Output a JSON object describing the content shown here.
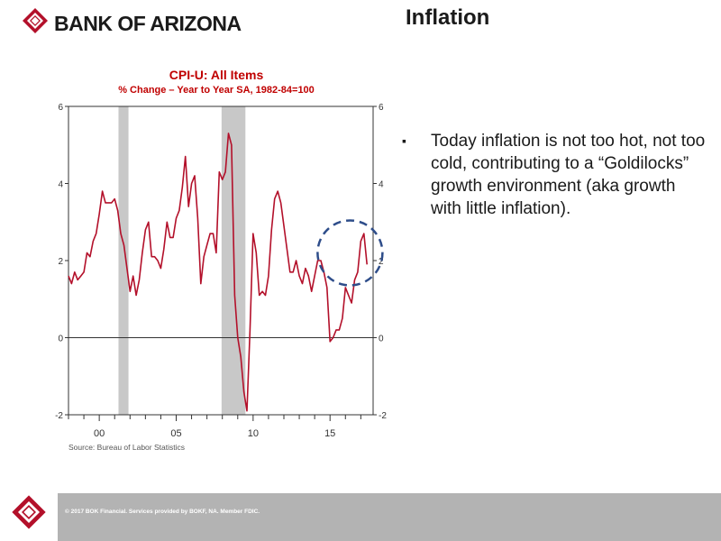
{
  "header": {
    "bank_name": "BANK OF ARIZONA",
    "slide_title": "Inflation"
  },
  "colors": {
    "brand_red": "#b3102a",
    "title_red": "#c00000",
    "recession_gray": "#c8c8c8",
    "highlight_blue": "#2e4d8a",
    "footer_gray": "#b3b3b3"
  },
  "bullets": [
    "Today inflation is not too hot, not too cold, contributing to a “Goldilocks” growth environment (aka growth with little inflation)."
  ],
  "source": "Source:  Bureau of Labor Statistics",
  "footer": {
    "copyright": "© 2017 BOK Financial. Services provided by BOKF, NA. Member FDIC."
  },
  "chart_data": {
    "type": "line",
    "title": "CPI-U:  All Items",
    "subtitle": "% Change – Year to Year    SA, 1982-84=100",
    "xlabel": "",
    "ylabel": "",
    "xlim": [
      1998.0,
      2017.8
    ],
    "ylim": [
      -2,
      6
    ],
    "x_ticks": [
      {
        "value": 2000,
        "label": "00"
      },
      {
        "value": 2005,
        "label": "05"
      },
      {
        "value": 2010,
        "label": "10"
      },
      {
        "value": 2015,
        "label": "15"
      }
    ],
    "y_ticks": [
      -2,
      0,
      2,
      4,
      6
    ],
    "grid": false,
    "zero_line": true,
    "recessions": [
      [
        2001.25,
        2001.9
      ],
      [
        2007.95,
        2009.5
      ]
    ],
    "highlight": {
      "shape": "dashed-circle",
      "center": [
        2016.3,
        2.2
      ]
    },
    "series": [
      {
        "x": [
          1998.0,
          1998.2,
          1998.4,
          1998.6,
          1998.8,
          1999.0,
          1999.2,
          1999.4,
          1999.6,
          1999.8,
          2000.0,
          2000.2,
          2000.4,
          2000.6,
          2000.8,
          2001.0,
          2001.2,
          2001.4,
          2001.6,
          2001.8,
          2002.0,
          2002.2,
          2002.4,
          2002.6,
          2002.8,
          2003.0,
          2003.2,
          2003.4,
          2003.6,
          2003.8,
          2004.0,
          2004.2,
          2004.4,
          2004.6,
          2004.8,
          2005.0,
          2005.2,
          2005.4,
          2005.6,
          2005.8,
          2006.0,
          2006.2,
          2006.4,
          2006.6,
          2006.8,
          2007.0,
          2007.2,
          2007.4,
          2007.6,
          2007.8,
          2008.0,
          2008.2,
          2008.4,
          2008.6,
          2008.8,
          2009.0,
          2009.2,
          2009.4,
          2009.6,
          2009.8,
          2010.0,
          2010.2,
          2010.4,
          2010.6,
          2010.8,
          2011.0,
          2011.2,
          2011.4,
          2011.6,
          2011.8,
          2012.0,
          2012.2,
          2012.4,
          2012.6,
          2012.8,
          2013.0,
          2013.2,
          2013.4,
          2013.6,
          2013.8,
          2014.0,
          2014.2,
          2014.4,
          2014.6,
          2014.8,
          2015.0,
          2015.2,
          2015.4,
          2015.6,
          2015.8,
          2016.0,
          2016.2,
          2016.4,
          2016.6,
          2016.8,
          2017.0,
          2017.2,
          2017.4
        ],
        "values": [
          1.6,
          1.4,
          1.7,
          1.5,
          1.6,
          1.7,
          2.2,
          2.1,
          2.5,
          2.7,
          3.2,
          3.8,
          3.5,
          3.5,
          3.5,
          3.6,
          3.3,
          2.7,
          2.4,
          1.8,
          1.2,
          1.6,
          1.1,
          1.5,
          2.2,
          2.8,
          3.0,
          2.1,
          2.1,
          2.0,
          1.8,
          2.3,
          3.0,
          2.6,
          2.6,
          3.1,
          3.3,
          3.9,
          4.7,
          3.4,
          4.0,
          4.2,
          3.1,
          1.4,
          2.1,
          2.4,
          2.7,
          2.7,
          2.2,
          4.3,
          4.1,
          4.3,
          5.3,
          5.0,
          1.1,
          0.0,
          -0.5,
          -1.4,
          -1.9,
          0.2,
          2.7,
          2.2,
          1.1,
          1.2,
          1.1,
          1.6,
          2.8,
          3.6,
          3.8,
          3.5,
          2.9,
          2.3,
          1.7,
          1.7,
          2.0,
          1.6,
          1.4,
          1.8,
          1.6,
          1.2,
          1.6,
          2.0,
          2.0,
          1.7,
          1.3,
          -0.1,
          0.0,
          0.2,
          0.2,
          0.5,
          1.3,
          1.1,
          0.9,
          1.5,
          1.7,
          2.5,
          2.7,
          1.9
        ]
      }
    ]
  }
}
